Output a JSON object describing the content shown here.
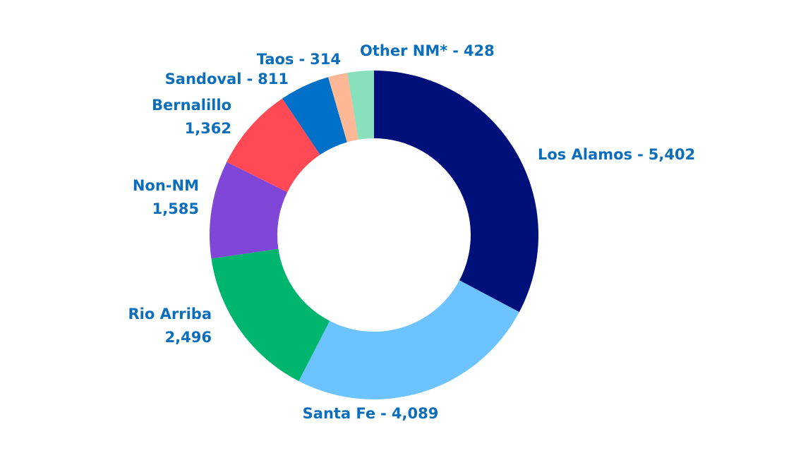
{
  "chart_data": {
    "type": "donut",
    "categories": [
      "Los Alamos",
      "Santa Fe",
      "Rio Arriba",
      "Non-NM",
      "Bernalillo",
      "Sandoval",
      "Taos",
      "Other NM*"
    ],
    "values": [
      5402,
      4089,
      2496,
      1585,
      1362,
      811,
      314,
      428
    ],
    "value_labels": [
      "5,402",
      "4,089",
      "2,496",
      "1,585",
      "1,362",
      "811",
      "314",
      "428"
    ],
    "separator": "-",
    "colors": [
      "#00107a",
      "#6cc3ff",
      "#00b56e",
      "#8046d8",
      "#ff4a55",
      "#0070c8",
      "#ffb895",
      "#88e0bc"
    ]
  }
}
